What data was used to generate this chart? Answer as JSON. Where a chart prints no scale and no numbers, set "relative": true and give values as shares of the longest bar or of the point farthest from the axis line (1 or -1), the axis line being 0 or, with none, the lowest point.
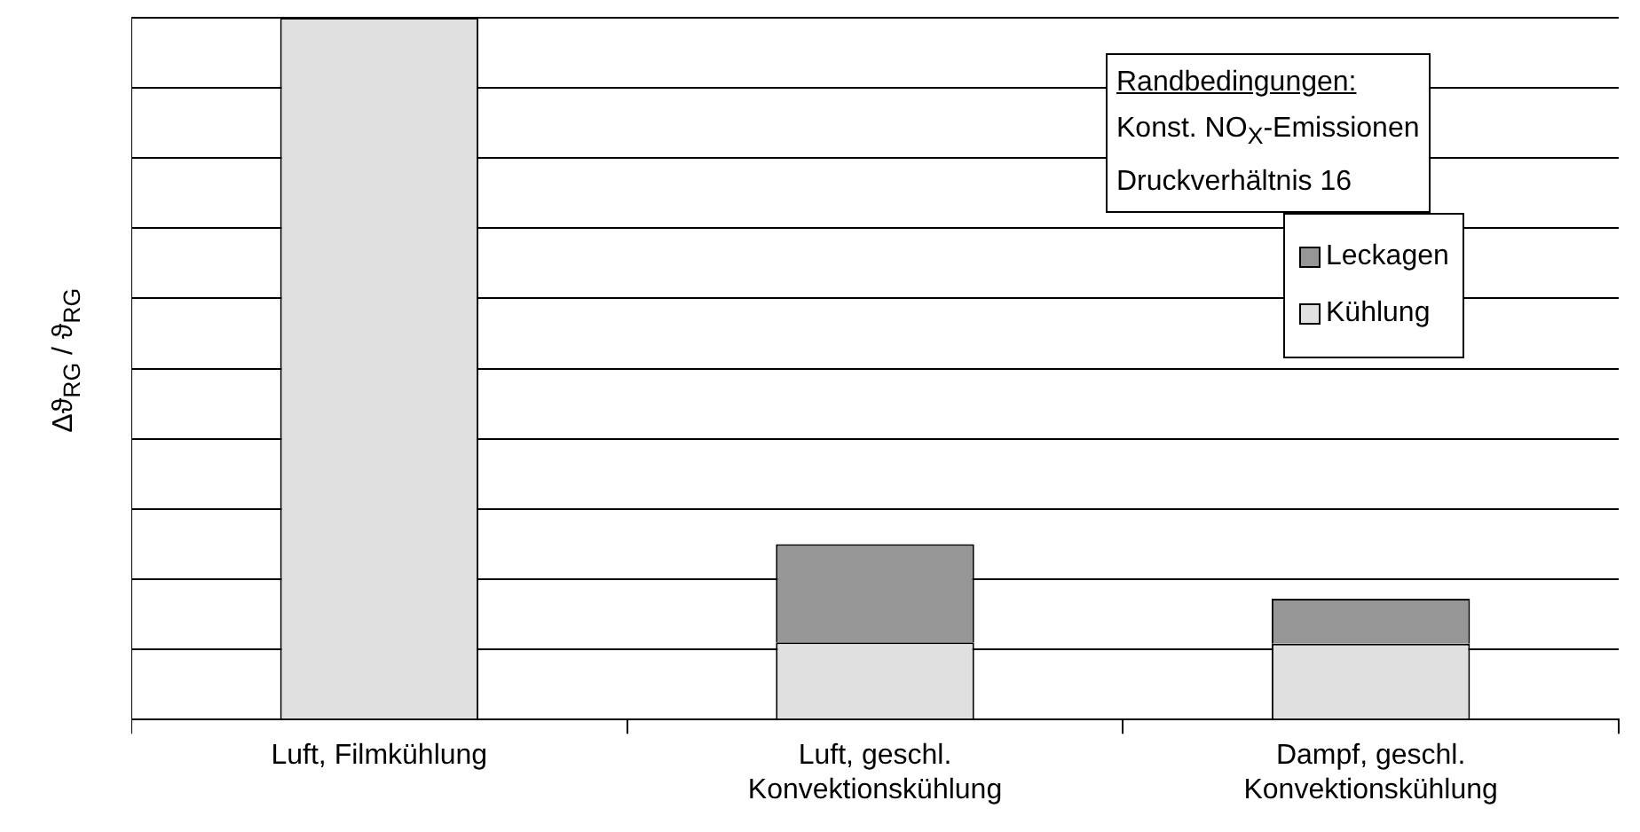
{
  "chart_data": {
    "type": "bar",
    "stacked": true,
    "relative": true,
    "grid": "y",
    "legend": "top right",
    "ylabel": "Δϑ$_{RG}$ / ϑ$_{RG}$",
    "categories": [
      "Luft, Filmkühlung",
      "Luft, geschl.\nKonvektionskühlung",
      "Dampf, geschl.\nKonvektionskühlung"
    ],
    "series": [
      {
        "name": "Kühlung",
        "color": "#e0e0e0",
        "values": [
          1,
          0.11,
          0.108
        ]
      },
      {
        "name": "Leckagen",
        "color": "#969696",
        "values": [
          null,
          0.14,
          0.064
        ]
      }
    ],
    "annotations": [
      "Randbedingungen:",
      "Konst. NO$_{X}$-Emissionen",
      "Druckverhältnis 16"
    ]
  }
}
